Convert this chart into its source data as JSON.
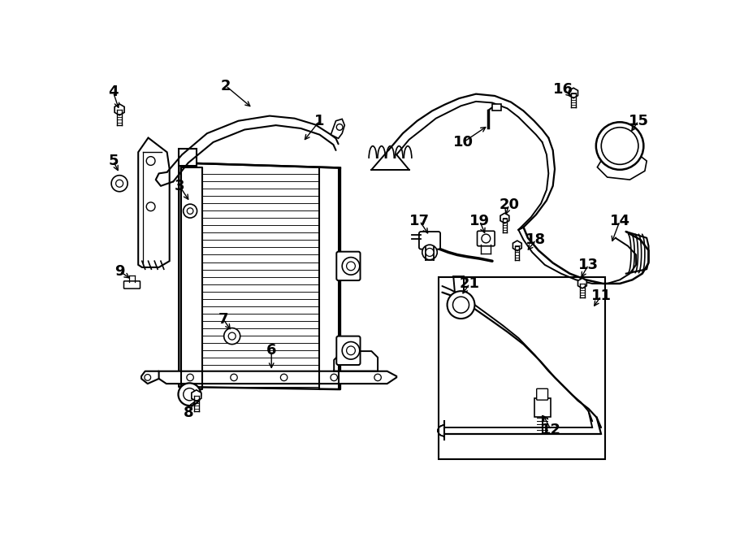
{
  "bg_color": "#ffffff",
  "line_color": "#000000",
  "fig_width": 9.0,
  "fig_height": 6.62,
  "callouts": {
    "1": {
      "txt": [
        3.62,
        5.72
      ],
      "pt": [
        3.35,
        5.38
      ]
    },
    "2": {
      "txt": [
        2.12,
        6.28
      ],
      "pt": [
        2.55,
        5.92
      ]
    },
    "3": {
      "txt": [
        1.38,
        4.68
      ],
      "pt": [
        1.55,
        4.42
      ]
    },
    "4": {
      "txt": [
        0.32,
        6.18
      ],
      "pt": [
        0.42,
        5.88
      ]
    },
    "5": {
      "txt": [
        0.32,
        5.08
      ],
      "pt": [
        0.42,
        4.88
      ]
    },
    "6": {
      "txt": [
        2.85,
        2.05
      ],
      "pt": [
        2.85,
        1.72
      ]
    },
    "7": {
      "txt": [
        2.08,
        2.55
      ],
      "pt": [
        2.22,
        2.35
      ]
    },
    "8": {
      "txt": [
        1.52,
        1.05
      ],
      "pt": [
        1.65,
        1.28
      ]
    },
    "9": {
      "txt": [
        0.42,
        3.32
      ],
      "pt": [
        0.62,
        3.18
      ]
    },
    "10": {
      "txt": [
        5.92,
        5.38
      ],
      "pt": [
        6.32,
        5.65
      ]
    },
    "11": {
      "txt": [
        8.12,
        2.92
      ],
      "pt": [
        7.98,
        2.72
      ]
    },
    "12": {
      "txt": [
        7.32,
        0.78
      ],
      "pt": [
        7.18,
        1.05
      ]
    },
    "13": {
      "txt": [
        7.92,
        3.42
      ],
      "pt": [
        7.78,
        3.18
      ]
    },
    "14": {
      "txt": [
        8.42,
        4.12
      ],
      "pt": [
        8.28,
        3.75
      ]
    },
    "15": {
      "txt": [
        8.72,
        5.72
      ],
      "pt": [
        8.58,
        5.52
      ]
    },
    "16": {
      "txt": [
        7.52,
        6.22
      ],
      "pt": [
        7.68,
        6.08
      ]
    },
    "17": {
      "txt": [
        5.22,
        4.12
      ],
      "pt": [
        5.38,
        3.88
      ]
    },
    "18": {
      "txt": [
        7.08,
        3.82
      ],
      "pt": [
        6.92,
        3.62
      ]
    },
    "19": {
      "txt": [
        6.18,
        4.12
      ],
      "pt": [
        6.28,
        3.88
      ]
    },
    "20": {
      "txt": [
        6.65,
        4.38
      ],
      "pt": [
        6.58,
        4.18
      ]
    },
    "21": {
      "txt": [
        6.02,
        3.12
      ],
      "pt": [
        5.88,
        2.92
      ]
    }
  }
}
